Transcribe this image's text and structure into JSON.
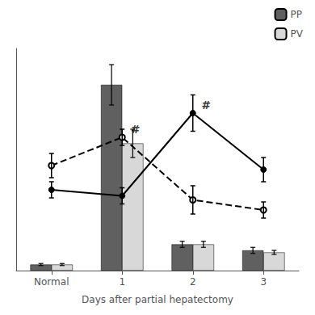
{
  "chart_data": {
    "type": "bar",
    "categories": [
      "Normal",
      "1",
      "2",
      "3"
    ],
    "xlabel": "Days after partial hepatectomy",
    "ylim": [
      0,
      1.1
    ],
    "tick_labels": "x",
    "grid": false,
    "legend": "upper right",
    "series": [
      {
        "name": "PP",
        "type": "bar",
        "color": "#606060",
        "values": [
          0.03,
          0.92,
          0.13,
          0.1
        ],
        "errors": [
          0.005,
          0.1,
          0.015,
          0.015
        ]
      },
      {
        "name": "PV",
        "type": "bar",
        "color": "#d8d8d8",
        "values": [
          0.03,
          0.63,
          0.13,
          0.09
        ],
        "errors": [
          0.005,
          0.07,
          0.015,
          0.01
        ]
      },
      {
        "type": "line",
        "color": "#000000",
        "marker": "circle",
        "line_style": "solid",
        "values": [
          0.4,
          0.37,
          0.78,
          0.5
        ],
        "errors": [
          0.04,
          0.04,
          0.09,
          0.06
        ]
      },
      {
        "type": "line",
        "color": "#000000",
        "marker": "open_circle",
        "line_style": "dashed",
        "values": [
          0.52,
          0.66,
          0.35,
          0.3
        ],
        "errors": [
          0.06,
          0.04,
          0.07,
          0.04
        ]
      }
    ],
    "annotations": [
      {
        "text": "#",
        "category": "1",
        "y": 0.7
      },
      {
        "text": "#",
        "category": "2",
        "y": 0.82
      }
    ]
  }
}
